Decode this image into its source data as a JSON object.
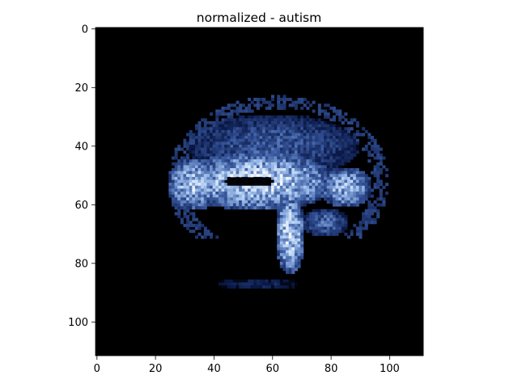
{
  "chart_data": {
    "type": "heatmap",
    "title": "normalized - autism",
    "xlabel": "",
    "ylabel": "",
    "image_shape": [
      112,
      112
    ],
    "xlim": [
      -0.5,
      111.5
    ],
    "ylim": [
      111.5,
      -0.5
    ],
    "y_axis_inverted": true,
    "colormap": "dark blue (black) to white",
    "colormap_stops": [
      "#000000",
      "#0b1a4a",
      "#3a5aa0",
      "#9fc0ec",
      "#ffffff"
    ],
    "background_value": 0,
    "x_ticks": [
      0,
      20,
      40,
      60,
      80,
      100
    ],
    "y_ticks": [
      0,
      20,
      40,
      60,
      80,
      100
    ],
    "x_tick_labels": [
      "0",
      "20",
      "40",
      "60",
      "80",
      "100"
    ],
    "y_tick_labels": [
      "0",
      "20",
      "40",
      "60",
      "80",
      "100"
    ],
    "grid": false,
    "legend": "none",
    "intensity_regions": [
      {
        "name": "cortex-upper",
        "cx": 60,
        "cy": 40,
        "rx": 30,
        "ry": 11,
        "intensity": 0.55
      },
      {
        "name": "cerebrum-core",
        "cx": 55,
        "cy": 52,
        "rx": 27,
        "ry": 10,
        "intensity": 0.95
      },
      {
        "name": "frontal-lobe",
        "cx": 33,
        "cy": 53,
        "rx": 9,
        "ry": 9,
        "intensity": 0.9
      },
      {
        "name": "occipital-lobe",
        "cx": 85,
        "cy": 54,
        "rx": 9,
        "ry": 7,
        "intensity": 0.85
      },
      {
        "name": "brainstem",
        "cx": 66,
        "cy": 70,
        "rx": 5,
        "ry": 14,
        "intensity": 0.95
      },
      {
        "name": "cerebellum",
        "cx": 78,
        "cy": 66,
        "rx": 8,
        "ry": 5,
        "intensity": 0.6
      },
      {
        "name": "ventricle",
        "cx": 52,
        "cy": 52,
        "rx": 9,
        "ry": 2,
        "intensity": 0.0
      },
      {
        "name": "lower-scatter",
        "cx": 55,
        "cy": 87,
        "rx": 14,
        "ry": 2,
        "intensity": 0.35
      },
      {
        "name": "skull-ring",
        "cx": 62,
        "cy": 52,
        "rx": 35,
        "ry": 27,
        "intensity": 0.4
      }
    ]
  }
}
